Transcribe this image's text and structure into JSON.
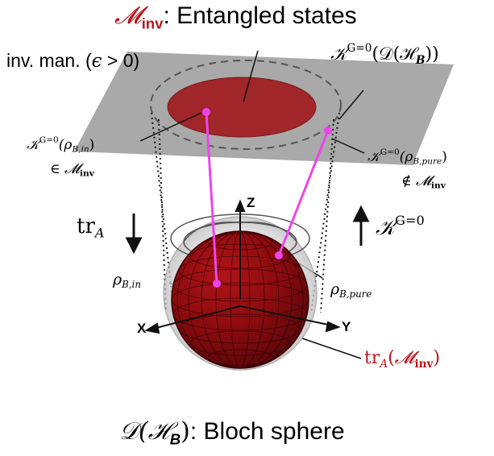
{
  "colors": {
    "plane": "#a9a9a9",
    "ellipse": "#a0262a",
    "sphere": "#8b0b0f",
    "magenta": "#ee44ee",
    "accent_red": "#b8141c"
  },
  "title": {
    "symbol": "𝓜",
    "sub": "inv",
    "text": ": Entangled states"
  },
  "inv_manifold": {
    "text": "inv. man. (",
    "epsilon": "ϵ",
    "condition": " > 0)"
  },
  "kg_dh": {
    "symbol": "𝒦",
    "sup": "G=0",
    "arg_open": "(𝒟(ℋ",
    "arg_sub": "B",
    "arg_close": "))"
  },
  "kg_rho_in": {
    "symbol": "𝒦",
    "sup": "G=0",
    "arg_open": "(ρ",
    "arg_sub": "B,in",
    "arg_close": ")",
    "member_rel": "∈ ",
    "member_set": "𝓜",
    "member_sub": "inv"
  },
  "kg_rho_pure": {
    "symbol": "𝒦",
    "sup": "G=0",
    "arg_open": "(ρ",
    "arg_sub": "B,pure",
    "arg_close": ")",
    "member_rel": "∉ ",
    "member_set": "𝓜",
    "member_sub": "inv"
  },
  "left_map": {
    "text": "tr",
    "sub": "A",
    "arrow": "↓"
  },
  "right_map": {
    "arrow": "↑",
    "symbol": "𝒦",
    "sup": "G=0"
  },
  "axes": {
    "z": "Z",
    "x": "X",
    "y": "Y"
  },
  "rho_in": {
    "text": "ρ",
    "sub": "B,in"
  },
  "rho_pure": {
    "text": "ρ",
    "sub": "B,pure"
  },
  "trace_inv": {
    "text": "tr",
    "sub": "A",
    "arg_open": "(",
    "set": "𝓜",
    "set_sub": "inv",
    "arg_close": ")"
  },
  "bottom": {
    "symbol": "𝒟(ℋ",
    "sub": "B",
    "close": ")",
    "text": ": Bloch sphere"
  }
}
